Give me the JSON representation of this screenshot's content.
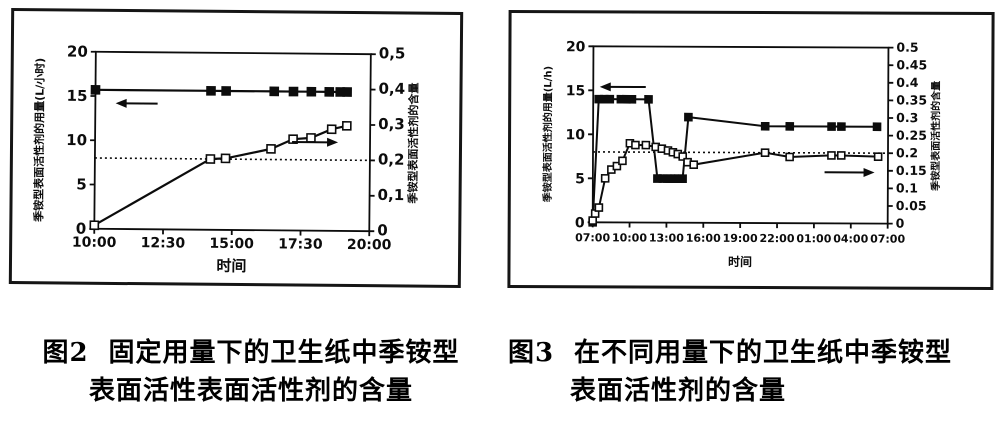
{
  "figure": {
    "background": "#ffffff",
    "ink_color": "#0c0c0c"
  },
  "chart_data": [
    {
      "type": "line",
      "figure_label": "图2",
      "caption_line1": "固定用量下的卫生纸中季铵型",
      "caption_line2": "表面活性表面活性剂的含量",
      "xlabel": "时间",
      "x_range": [
        10,
        20
      ],
      "x_ticks": {
        "labels": [
          "10:00",
          "12:30",
          "15:00",
          "17:30",
          "20:00"
        ],
        "hours": [
          10,
          12.5,
          15,
          17.5,
          20
        ]
      },
      "left_axis": {
        "label": "季铵型表面活性剂的用量(L/小时)",
        "range": [
          0,
          20
        ],
        "tick_labels": [
          "0",
          "5",
          "10",
          "15",
          "20"
        ],
        "tick_values": [
          0,
          5,
          10,
          15,
          20
        ]
      },
      "right_axis": {
        "label": "季铵型表面活性剂的含量",
        "range": [
          0,
          0.5
        ],
        "tick_labels": [
          "0",
          "0,1",
          "0,2",
          "0,3",
          "0,4",
          "0,5"
        ],
        "tick_values": [
          0,
          0.1,
          0.2,
          0.3,
          0.4,
          0.5
        ]
      },
      "reference_line": {
        "left_value": 8,
        "right_value": 0.2,
        "style": "dotted"
      },
      "series": [
        {
          "id": "dosage",
          "marker": "filled-square",
          "axis": "left",
          "arrow": {
            "dir": "left",
            "fx": 0.15,
            "fy": 0.29,
            "len": 42
          },
          "x": [
            10.0,
            14.2,
            14.75,
            16.5,
            17.2,
            17.85,
            18.5,
            18.9,
            19.15
          ],
          "y": [
            15.7,
            15.7,
            15.7,
            15.7,
            15.7,
            15.7,
            15.7,
            15.7,
            15.7
          ]
        },
        {
          "id": "content",
          "marker": "open-square",
          "axis": "right",
          "arrow": {
            "dir": "right",
            "fx": 0.8,
            "fy": 0.5,
            "len": 46
          },
          "x": [
            10.0,
            14.2,
            14.75,
            16.4,
            17.2,
            17.85,
            18.6,
            19.15
          ],
          "y": [
            0.01,
            0.2,
            0.202,
            0.23,
            0.258,
            0.262,
            0.287,
            0.297
          ]
        }
      ]
    },
    {
      "type": "line",
      "figure_label": "图3",
      "caption_line1": "在不同用量下的卫生纸中季铵型",
      "caption_line2": "表面活性剂的含量",
      "xlabel": "时间",
      "x_range": [
        7,
        31
      ],
      "x_ticks": {
        "labels": [
          "07:00",
          "10:00",
          "13:00",
          "16:00",
          "19:00",
          "22:00",
          "01:00",
          "04:00",
          "07:00"
        ],
        "hours": [
          7,
          10,
          13,
          16,
          19,
          22,
          25,
          28,
          31
        ]
      },
      "left_axis": {
        "label": "季铵型表面活性剂的用量(L/h)",
        "range": [
          0,
          20
        ],
        "tick_labels": [
          "0",
          "5",
          "10",
          "15",
          "20"
        ],
        "tick_values": [
          0,
          5,
          10,
          15,
          20
        ]
      },
      "right_axis": {
        "label": "季铵型表面活性剂的含量",
        "range": [
          0,
          0.5
        ],
        "tick_labels": [
          "0",
          "0.05",
          "0.1",
          "0.15",
          "0.2",
          "0.25",
          "0.3",
          "0.35",
          "0.4",
          "0.45",
          "0.5"
        ],
        "tick_values": [
          0,
          0.05,
          0.1,
          0.15,
          0.2,
          0.25,
          0.3,
          0.35,
          0.4,
          0.45,
          0.5
        ]
      },
      "reference_line": {
        "left_value": 8,
        "right_value": 0.2,
        "style": "dotted"
      },
      "series": [
        {
          "id": "dosage",
          "marker": "filled-square",
          "axis": "left",
          "arrow": {
            "dir": "left",
            "fx": 0.1,
            "fy": 0.23,
            "len": 46
          },
          "x": [
            7.0,
            7.45,
            7.9,
            8.35,
            9.25,
            9.7,
            10.15,
            11.5,
            12.25,
            12.7,
            13.05,
            13.35,
            13.65,
            13.95,
            14.3,
            14.75,
            21.0,
            23.0,
            26.4,
            27.2,
            30.1
          ],
          "y": [
            0,
            14,
            14,
            14,
            14,
            14,
            14,
            14,
            5,
            5,
            5,
            5,
            5,
            5,
            5,
            12,
            11,
            11,
            11,
            11,
            11
          ]
        },
        {
          "id": "content",
          "marker": "open-square",
          "axis": "right",
          "arrow": {
            "dir": "right",
            "fx": 0.87,
            "fy": 0.71,
            "len": 50
          },
          "x": [
            7.0,
            7.2,
            7.5,
            8.0,
            8.5,
            8.95,
            9.4,
            10.0,
            10.45,
            11.3,
            12.1,
            12.6,
            13.1,
            13.5,
            13.9,
            14.3,
            14.7,
            15.2,
            21.0,
            23.0,
            26.4,
            27.2,
            30.2
          ],
          "y": [
            0.005,
            0.025,
            0.042,
            0.125,
            0.15,
            0.16,
            0.175,
            0.225,
            0.22,
            0.22,
            0.215,
            0.21,
            0.205,
            0.2,
            0.195,
            0.188,
            0.172,
            0.165,
            0.2,
            0.188,
            0.193,
            0.193,
            0.19
          ]
        }
      ]
    }
  ]
}
